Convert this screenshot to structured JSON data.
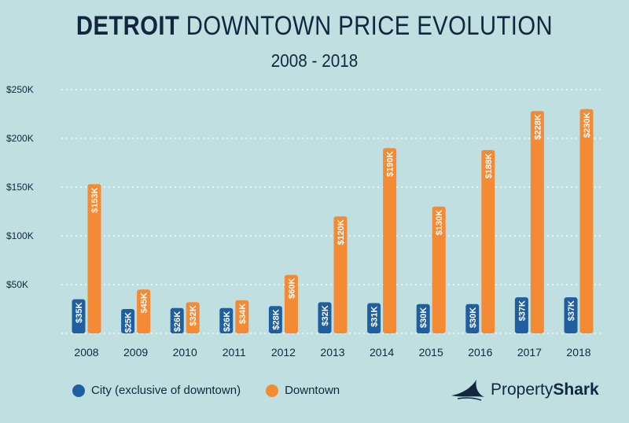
{
  "header": {
    "title_bold": "DETROIT",
    "title_rest": " DOWNTOWN PRICE EVOLUTION",
    "subtitle": "2008 - 2018"
  },
  "colors": {
    "background": "#bfdfe0",
    "city": "#1f5fa0",
    "downtown": "#f58a34",
    "text": "#12263f",
    "grid": "#ffffff"
  },
  "legend": {
    "city_label": "City (exclusive of downtown)",
    "downtown_label": "Downtown"
  },
  "brand": {
    "name_light": "Property",
    "name_bold": "Shark"
  },
  "chart_data": {
    "type": "bar",
    "title": "DETROIT DOWNTOWN PRICE EVOLUTION",
    "subtitle": "2008 - 2018",
    "xlabel": "",
    "ylabel": "",
    "ylim": [
      0,
      250
    ],
    "yticks": [
      50,
      100,
      150,
      200,
      250
    ],
    "ytick_labels": [
      "$50K",
      "$100K",
      "$150K",
      "$200K",
      "$250K"
    ],
    "grid": true,
    "categories": [
      "2008",
      "2009",
      "2010",
      "2011",
      "2012",
      "2013",
      "2014",
      "2015",
      "2016",
      "2017",
      "2018"
    ],
    "series": [
      {
        "name": "City (exclusive of downtown)",
        "values": [
          35,
          25,
          26,
          26,
          28,
          32,
          31,
          30,
          30,
          37,
          37
        ],
        "labels": [
          "$35K",
          "$25K",
          "$26K",
          "$26K",
          "$28K",
          "$32K",
          "$31K",
          "$30K",
          "$30K",
          "$37K",
          "$37K"
        ]
      },
      {
        "name": "Downtown",
        "values": [
          153,
          45,
          32,
          34,
          60,
          120,
          190,
          130,
          188,
          228,
          230
        ],
        "labels": [
          "$153K",
          "$45K",
          "$32K",
          "$34K",
          "$60K",
          "$120K",
          "$190K",
          "$130K",
          "$188K",
          "$228K",
          "$230K"
        ]
      }
    ],
    "legend_position": "bottom-left"
  }
}
